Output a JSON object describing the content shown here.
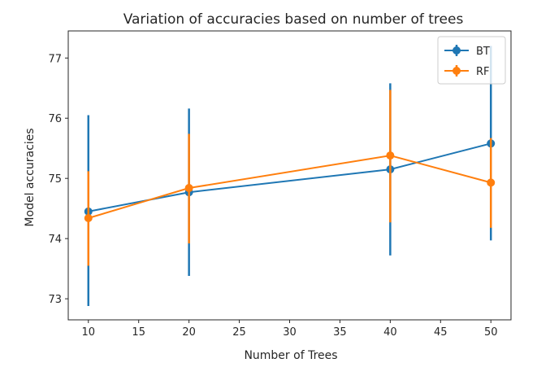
{
  "chart_data": {
    "type": "line",
    "title": "Variation of accuracies based on number of trees",
    "xlabel": "Number of Trees",
    "ylabel": "Model accuracies",
    "xlim": [
      8.0,
      52.0
    ],
    "ylim": [
      72.65,
      77.45
    ],
    "xticks": [
      10,
      15,
      20,
      25,
      30,
      35,
      40,
      45,
      50
    ],
    "yticks": [
      73,
      74,
      75,
      76,
      77
    ],
    "grid": false,
    "legend_position": "top-right",
    "x": [
      10,
      20,
      40,
      50
    ],
    "series": [
      {
        "name": "BT",
        "color": "#1f77b4",
        "values": [
          74.45,
          74.77,
          75.15,
          75.58
        ],
        "yerr_low": [
          72.88,
          73.38,
          73.72,
          73.97
        ],
        "yerr_high": [
          76.05,
          76.16,
          76.58,
          77.2
        ]
      },
      {
        "name": "RF",
        "color": "#ff7f0e",
        "values": [
          74.34,
          74.84,
          75.38,
          74.93
        ],
        "yerr_low": [
          73.55,
          73.92,
          74.27,
          74.18
        ],
        "yerr_high": [
          75.12,
          75.74,
          76.47,
          75.67
        ]
      }
    ]
  }
}
